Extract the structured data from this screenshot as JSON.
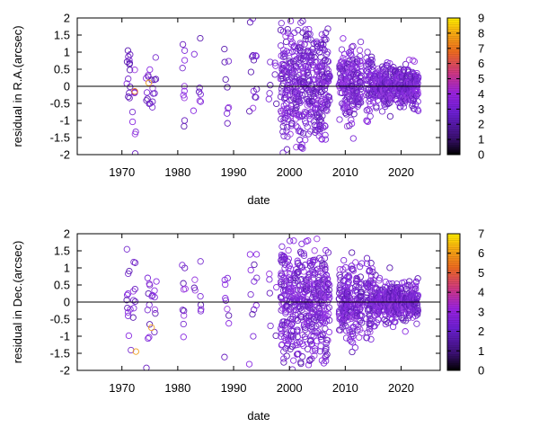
{
  "chart_data": [
    {
      "type": "scatter",
      "title": "",
      "xlabel": "date",
      "ylabel": "residual in R.A.(arcsec)",
      "xlim": [
        1962,
        2027
      ],
      "ylim": [
        -2,
        2
      ],
      "xticks": [
        "1970",
        "1980",
        "1990",
        "2000",
        "2010",
        "2020"
      ],
      "yticks": [
        "-2",
        "-1.5",
        "-1",
        "-0.5",
        "0",
        "0.5",
        "1",
        "1.5",
        "2"
      ],
      "colorbar": {
        "min": 0,
        "max": 9,
        "ticks": [
          "0",
          "1",
          "2",
          "3",
          "4",
          "5",
          "6",
          "7",
          "8",
          "9"
        ]
      },
      "marker": "open-circle",
      "zero_line": true,
      "grid": false,
      "highlight_points": [
        {
          "x": 1974.8,
          "y": 0.1,
          "c": 6
        },
        {
          "x": 1972.3,
          "y": -0.15,
          "c": 5
        }
      ]
    },
    {
      "type": "scatter",
      "title": "",
      "xlabel": "date",
      "ylabel": "residual in Dec.(arcsec)",
      "xlim": [
        1962,
        2027
      ],
      "ylim": [
        -2,
        2
      ],
      "xticks": [
        "1970",
        "1980",
        "1990",
        "2000",
        "2010",
        "2020"
      ],
      "yticks": [
        "-2",
        "-1.5",
        "-1",
        "-0.5",
        "0",
        "0.5",
        "1",
        "1.5",
        "2"
      ],
      "colorbar": {
        "min": 0,
        "max": 7,
        "ticks": [
          "0",
          "1",
          "2",
          "3",
          "4",
          "5",
          "6",
          "7"
        ]
      },
      "marker": "open-circle",
      "zero_line": true,
      "grid": false,
      "highlight_points": [
        {
          "x": 1972.5,
          "y": -1.45,
          "c": 5.5
        },
        {
          "x": 1975.3,
          "y": -0.75,
          "c": 5
        }
      ]
    }
  ]
}
